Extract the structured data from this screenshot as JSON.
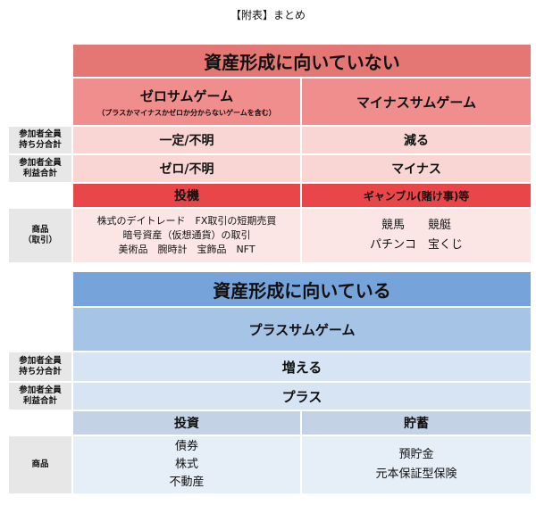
{
  "caption": "【附表】まとめ",
  "side_labels": {
    "holdings_1": "参加者全員",
    "holdings_2": "持ち分合計",
    "profit_1": "参加者全員",
    "profit_2": "利益合計",
    "goods_1": "商品",
    "goods_2": "（取引）",
    "goods_blue": "商品"
  },
  "red": {
    "title": "資産形成に向いていない",
    "left": {
      "header": "ゼロサムゲーム",
      "subheader": "（プラスかマイナスかゼロか分からないゲームを含む）",
      "holdings": "一定/不明",
      "profit": "ゼロ/不明",
      "category": "投機",
      "items": [
        "株式のデイトレード　FX取引の短期売買",
        "暗号資産（仮想通貨）の取引",
        "美術品　腕時計　宝飾品　NFT"
      ]
    },
    "right": {
      "header": "マイナスサムゲーム",
      "holdings": "減る",
      "profit": "マイナス",
      "category": "ギャンブル(賭け事)等",
      "items": [
        "競馬　　競艇",
        "パチンコ　宝くじ"
      ]
    }
  },
  "blue": {
    "title": "資産形成に向いている",
    "header": "プラスサムゲーム",
    "holdings": "増える",
    "profit": "プラス",
    "left": {
      "category": "投資",
      "items": [
        "債券",
        "株式",
        "不動産"
      ]
    },
    "right": {
      "category": "貯蓄",
      "items": [
        "預貯金",
        "元本保証型保険"
      ]
    }
  },
  "colors": {
    "red_title": "#e47673",
    "red_header": "#ef8e8c",
    "red_row": "#f9d5d3",
    "red_category": "#e9464a",
    "blue_title": "#76a3da",
    "blue_header": "#a6c4e6",
    "blue_row": "#d7e4f3",
    "side_label": "#e7e7e7"
  }
}
